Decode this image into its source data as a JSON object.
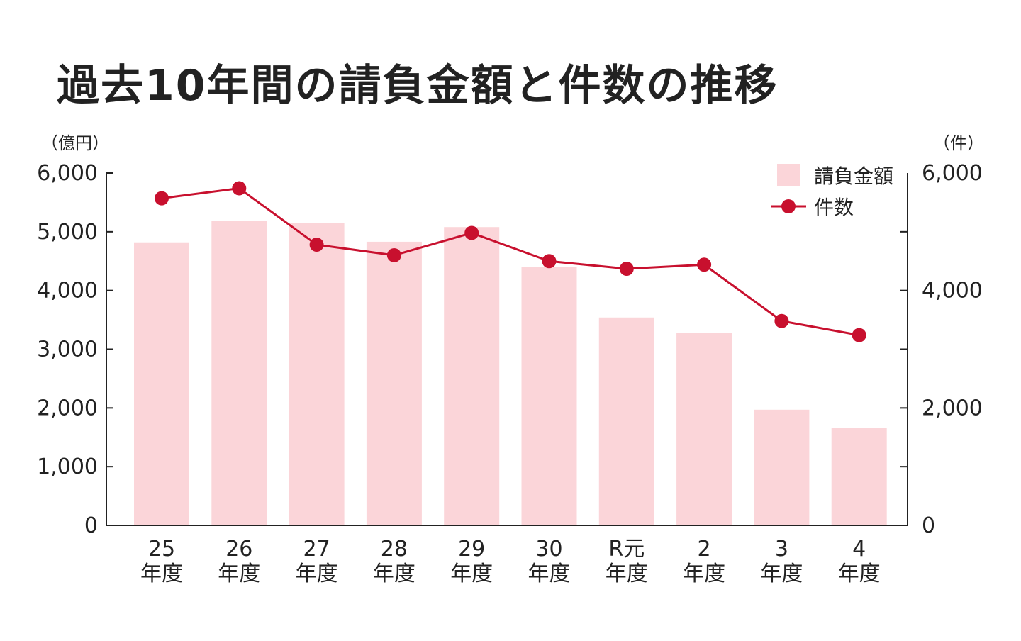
{
  "title": "過去10年間の請負金額と件数の推移",
  "chart_data": {
    "type": "bar",
    "y_left_unit": "（億円）",
    "y_right_unit": "（件）",
    "y_left_ticks": [
      "0",
      "1,000",
      "2,000",
      "3,000",
      "4,000",
      "5,000",
      "6,000"
    ],
    "y_right_ticks": [
      "0",
      "2,000",
      "4,000",
      "6,000"
    ],
    "ylim_left": [
      0,
      6000
    ],
    "ylim_right": [
      0,
      6000
    ],
    "categories": [
      {
        "top": "25",
        "bottom": "年度"
      },
      {
        "top": "26",
        "bottom": "年度"
      },
      {
        "top": "27",
        "bottom": "年度"
      },
      {
        "top": "28",
        "bottom": "年度"
      },
      {
        "top": "29",
        "bottom": "年度"
      },
      {
        "top": "30",
        "bottom": "年度"
      },
      {
        "top": "R元",
        "bottom": "年度"
      },
      {
        "top": "2",
        "bottom": "年度"
      },
      {
        "top": "3",
        "bottom": "年度"
      },
      {
        "top": "4",
        "bottom": "年度"
      }
    ],
    "series": [
      {
        "name": "請負金額",
        "type": "bar",
        "axis": "left",
        "color": "#fbd5d9",
        "values": [
          4820,
          5180,
          5150,
          4830,
          5080,
          4400,
          3540,
          3280,
          1970,
          1660
        ]
      },
      {
        "name": "件数",
        "type": "line",
        "axis": "right",
        "color": "#c8102e",
        "values": [
          5570,
          5740,
          4780,
          4600,
          4980,
          4500,
          4370,
          4440,
          3480,
          3240
        ]
      }
    ],
    "legend_position": "top-right"
  }
}
